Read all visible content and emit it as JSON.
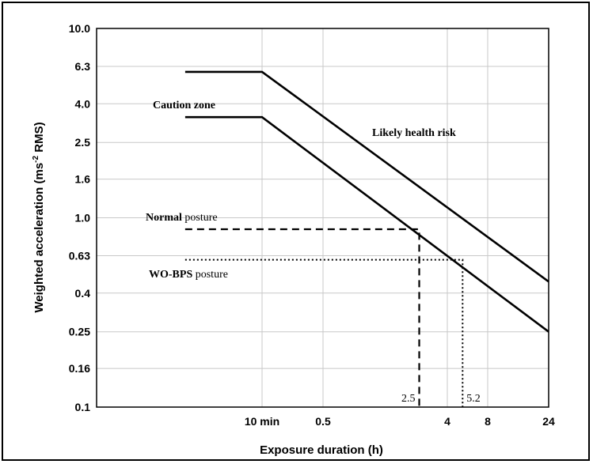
{
  "chart_data": {
    "type": "line",
    "xlabel": "Exposure duration (h)",
    "ylabel_main": "Weighted acceleration (ms",
    "ylabel_sup": "-2",
    "ylabel_end": " RMS)",
    "y_scale": "log",
    "y_ticks": [
      "10.0",
      "6.3",
      "4.0",
      "2.5",
      "1.6",
      "1.0",
      "0.63",
      "0.4",
      "0.25",
      "0.16",
      "0.1"
    ],
    "x_scale": "log",
    "x_ticks": [
      {
        "h": 0.1667,
        "label": "10 min"
      },
      {
        "h": 0.5,
        "label": "0.5"
      },
      {
        "h": 4,
        "label": "4"
      },
      {
        "h": 8,
        "label": "8"
      },
      {
        "h": 24,
        "label": "24"
      }
    ],
    "grid": true,
    "series": [
      {
        "points": [
          [
            0.0417,
            5.9
          ],
          [
            0.1667,
            5.9
          ],
          [
            24,
            0.46
          ]
        ]
      },
      {
        "points": [
          [
            0.0417,
            3.4
          ],
          [
            0.1667,
            3.4
          ],
          [
            24,
            0.25
          ]
        ]
      }
    ],
    "reference_lines": [
      {
        "style": "dashed",
        "y": 0.87,
        "x": 2.5,
        "value_label": "2.5"
      },
      {
        "style": "dotted",
        "y": 0.6,
        "x": 5.2,
        "value_label": "5.2"
      }
    ],
    "annotations": {
      "caution_zone": "Caution zone",
      "health_risk": "Likely health risk",
      "normal_bold": "Normal",
      "normal_rest": " posture",
      "wobps_bold": "WO-BPS",
      "wobps_rest": " posture"
    },
    "colors": {
      "lines": "#000000",
      "grid": "#c8c8c8"
    }
  }
}
